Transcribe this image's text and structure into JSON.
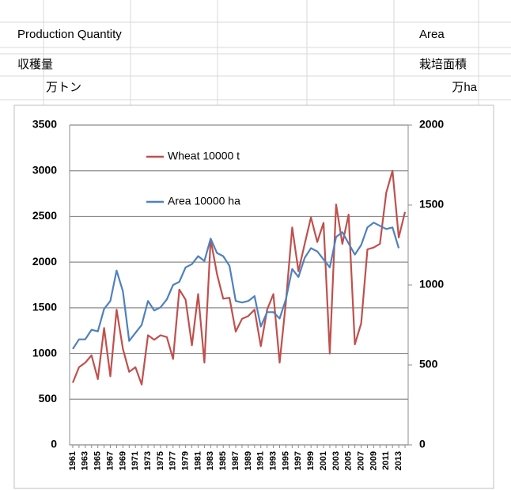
{
  "header": {
    "production_label": "Production Quantity",
    "area_label": "Area",
    "production_jp": "収穫量",
    "area_jp": "栽培面積",
    "production_unit": "万トン",
    "area_unit": "万ha"
  },
  "chart_data": {
    "type": "line",
    "categories": [
      "1961",
      null,
      "1963",
      null,
      "1965",
      null,
      "1967",
      null,
      "1969",
      null,
      "1971",
      null,
      "1973",
      null,
      "1975",
      null,
      "1977",
      null,
      "1979",
      null,
      "1981",
      null,
      "1983",
      null,
      "1985",
      null,
      "1987",
      null,
      "1989",
      null,
      "1991",
      null,
      "1993",
      null,
      "1995",
      null,
      "1997",
      null,
      "1999",
      null,
      "2001",
      null,
      "2003",
      null,
      "2005",
      null,
      "2007",
      null,
      "2009",
      null,
      "2011",
      null,
      "2013",
      null
    ],
    "series": [
      {
        "name": "Wheat 10000 t",
        "color": "#c0504d",
        "values": [
          680,
          850,
          900,
          980,
          720,
          1280,
          750,
          1480,
          1050,
          800,
          850,
          660,
          1200,
          1150,
          1200,
          1180,
          940,
          1700,
          1590,
          1090,
          1650,
          900,
          2250,
          1870,
          1600,
          1610,
          1240,
          1380,
          1410,
          1480,
          1080,
          1480,
          1650,
          900,
          1560,
          2380,
          1900,
          2200,
          2490,
          2220,
          2430,
          1000,
          2630,
          2200,
          2520,
          1100,
          1330,
          2140,
          2160,
          2200,
          2760,
          3000,
          2270,
          2550
        ]
      },
      {
        "name": "Area 10000 ha",
        "color": "#4f81bd",
        "axis": "y2",
        "values": [
          600,
          660,
          660,
          720,
          710,
          850,
          900,
          1090,
          960,
          650,
          700,
          750,
          900,
          840,
          860,
          910,
          1000,
          1020,
          1110,
          1130,
          1180,
          1150,
          1290,
          1200,
          1180,
          1120,
          900,
          890,
          900,
          930,
          740,
          830,
          830,
          790,
          910,
          1100,
          1050,
          1170,
          1230,
          1210,
          1160,
          1110,
          1300,
          1330,
          1260,
          1190,
          1250,
          1360,
          1390,
          1370,
          1350,
          1360,
          1230,
          null
        ]
      }
    ],
    "ylim": [
      0,
      3500
    ],
    "yticks": [
      0,
      500,
      1000,
      1500,
      2000,
      2500,
      3000,
      3500
    ],
    "y2lim": [
      0,
      2000
    ],
    "y2ticks": [
      0,
      500,
      1000,
      1500,
      2000
    ],
    "grid": true
  }
}
